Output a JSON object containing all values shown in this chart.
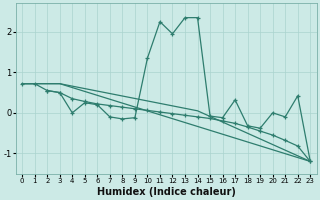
{
  "xlabel": "Humidex (Indice chaleur)",
  "line_color": "#2e7d6e",
  "bg_color": "#cceae6",
  "grid_color": "#aad4ce",
  "xlim": [
    -0.5,
    23.5
  ],
  "ylim": [
    -1.5,
    2.7
  ],
  "yticks": [
    -1,
    0,
    1,
    2
  ],
  "xticks": [
    0,
    1,
    2,
    3,
    4,
    5,
    6,
    7,
    8,
    9,
    10,
    11,
    12,
    13,
    14,
    15,
    16,
    17,
    18,
    19,
    20,
    21,
    22,
    23
  ],
  "line1_x": [
    0,
    1,
    2,
    3,
    4,
    5,
    6,
    7,
    8,
    9,
    10,
    11,
    12,
    13,
    14,
    15,
    16,
    17,
    18,
    19,
    20,
    21,
    22,
    23
  ],
  "line1_y": [
    0.72,
    0.72,
    0.55,
    0.5,
    0.35,
    0.28,
    0.22,
    0.18,
    0.14,
    0.1,
    0.06,
    0.02,
    -0.02,
    -0.06,
    -0.1,
    -0.14,
    -0.2,
    -0.26,
    -0.35,
    -0.45,
    -0.55,
    -0.68,
    -0.82,
    -1.2
  ],
  "line2_x": [
    0,
    1,
    2,
    3,
    14,
    23
  ],
  "line2_y": [
    0.72,
    0.72,
    0.72,
    0.72,
    0.05,
    -1.2
  ],
  "line3_x": [
    0,
    1,
    2,
    3,
    23
  ],
  "line3_y": [
    0.72,
    0.72,
    0.72,
    0.72,
    -1.2
  ],
  "line4_x": [
    2,
    3,
    4,
    5,
    6,
    7,
    8,
    9,
    10,
    11,
    12,
    13,
    14,
    15,
    16,
    17,
    18,
    19,
    20,
    21,
    22,
    23
  ],
  "line4_y": [
    0.55,
    0.5,
    0.0,
    0.25,
    0.2,
    -0.1,
    -0.15,
    -0.12,
    1.35,
    2.25,
    1.95,
    2.35,
    2.35,
    -0.08,
    -0.12,
    0.32,
    -0.32,
    -0.38,
    0.0,
    -0.1,
    0.42,
    -1.2
  ]
}
